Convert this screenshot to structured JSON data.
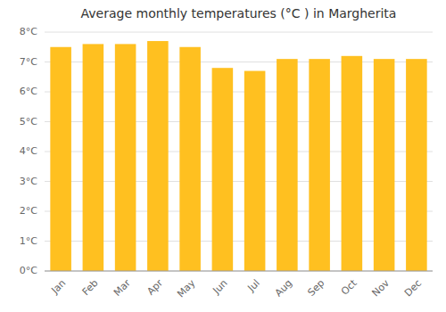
{
  "chart_data": {
    "type": "bar",
    "title": "Average monthly temperatures (°C ) in Margherita",
    "categories": [
      "Jan",
      "Feb",
      "Mar",
      "Apr",
      "May",
      "Jun",
      "Jul",
      "Aug",
      "Sep",
      "Oct",
      "Nov",
      "Dec"
    ],
    "values": [
      7.5,
      7.6,
      7.6,
      7.7,
      7.5,
      6.8,
      6.7,
      7.1,
      7.1,
      7.2,
      7.1,
      7.1
    ],
    "color": "#FFC020",
    "ylim": [
      0,
      8
    ],
    "yticks": [
      {
        "value": 0,
        "label": "0°C"
      },
      {
        "value": 1,
        "label": "1°C"
      },
      {
        "value": 2,
        "label": "2°C"
      },
      {
        "value": 3,
        "label": "3°C"
      },
      {
        "value": 4,
        "label": "4°C"
      },
      {
        "value": 5,
        "label": "5°C"
      },
      {
        "value": 6,
        "label": "6°C"
      },
      {
        "value": 7,
        "label": "7°C"
      },
      {
        "value": 8,
        "label": "8°C"
      }
    ],
    "grid": true
  }
}
